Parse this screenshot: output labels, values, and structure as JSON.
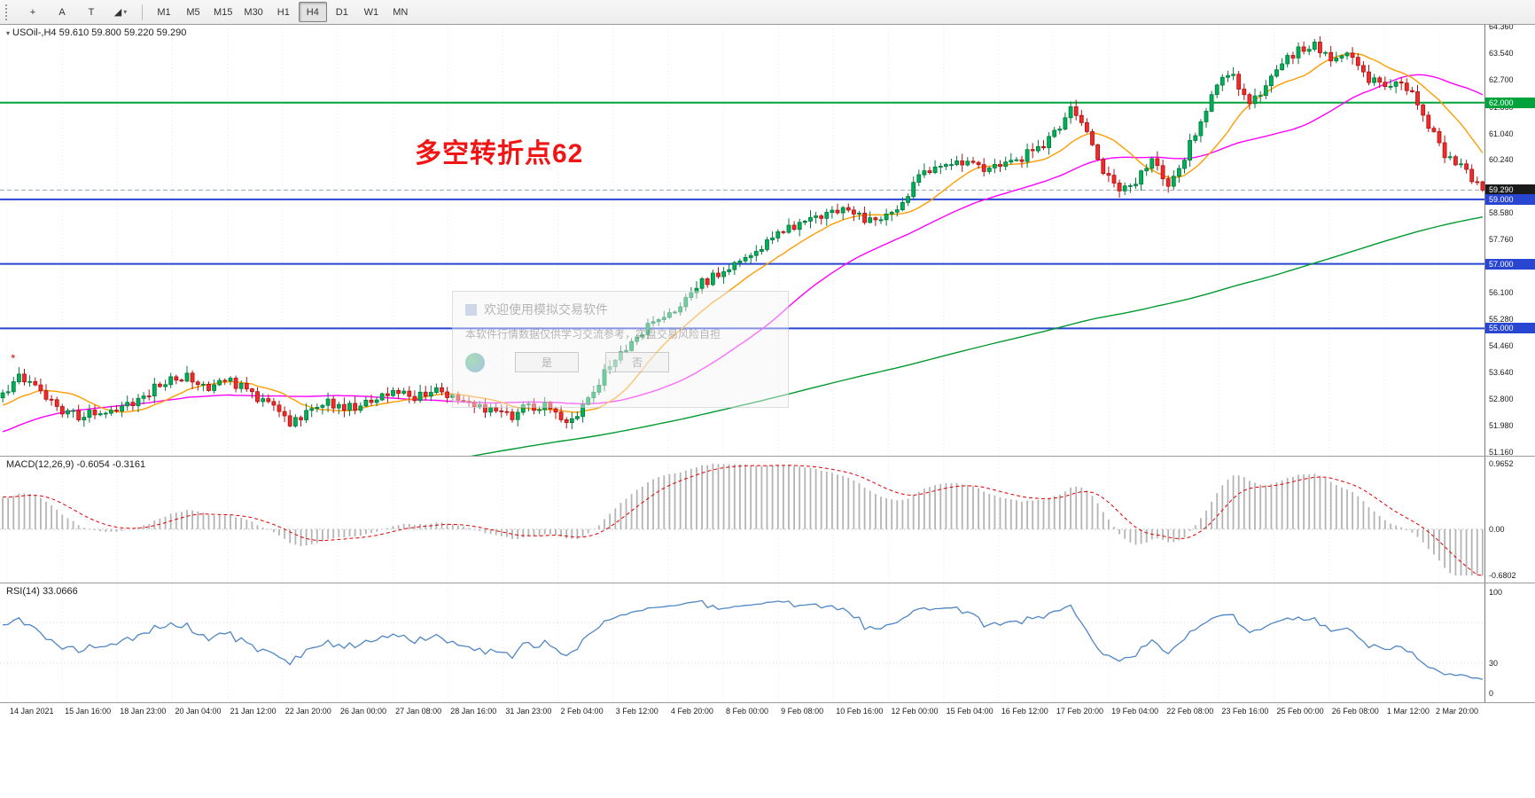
{
  "toolbar": {
    "tools": [
      {
        "name": "crosshair-tool",
        "glyph": "+"
      },
      {
        "name": "arrow-tool",
        "glyph": "A"
      },
      {
        "name": "text-tool",
        "glyph": "T"
      },
      {
        "name": "shapes-tool",
        "glyph": "◢",
        "has_dropdown": true
      }
    ],
    "timeframes": [
      "M1",
      "M5",
      "M15",
      "M30",
      "H1",
      "H4",
      "D1",
      "W1",
      "MN"
    ],
    "active_timeframe": "H4"
  },
  "main": {
    "symbol_label": "USOil-,H4  59.610 59.800 59.220 59.290",
    "annotation": "多空转折点62"
  },
  "watermark": {
    "title": "欢迎使用模拟交易软件",
    "body": "本软件行情数据仅供学习交流参考，实盘交易风险自担",
    "buttons": [
      "是",
      "否"
    ]
  },
  "chart_data": {
    "type": "candlestick",
    "symbol": "USOil-",
    "timeframe": "H4",
    "ohlc": {
      "open": 59.61,
      "high": 59.8,
      "low": 59.22,
      "close": 59.29
    },
    "price_range": [
      51.16,
      64.36
    ],
    "candles_count": 274,
    "trend_anchors": [
      [
        0,
        53.0
      ],
      [
        3,
        53.55
      ],
      [
        6,
        53.3
      ],
      [
        10,
        52.55
      ],
      [
        14,
        52.25
      ],
      [
        18,
        52.45
      ],
      [
        22,
        52.6
      ],
      [
        26,
        52.9
      ],
      [
        30,
        53.35
      ],
      [
        34,
        53.55
      ],
      [
        38,
        53.2
      ],
      [
        42,
        53.35
      ],
      [
        46,
        52.95
      ],
      [
        50,
        52.65
      ],
      [
        53,
        51.95
      ],
      [
        56,
        52.45
      ],
      [
        60,
        52.7
      ],
      [
        64,
        52.55
      ],
      [
        68,
        52.7
      ],
      [
        72,
        53.0
      ],
      [
        76,
        52.9
      ],
      [
        80,
        53.1
      ],
      [
        84,
        52.85
      ],
      [
        88,
        52.6
      ],
      [
        92,
        52.35
      ],
      [
        94,
        52.2
      ],
      [
        96,
        52.5
      ],
      [
        100,
        52.6
      ],
      [
        103,
        52.1
      ],
      [
        106,
        52.4
      ],
      [
        108,
        52.8
      ],
      [
        112,
        53.9
      ],
      [
        116,
        54.6
      ],
      [
        120,
        55.2
      ],
      [
        124,
        55.6
      ],
      [
        128,
        56.3
      ],
      [
        132,
        56.7
      ],
      [
        136,
        57.1
      ],
      [
        140,
        57.5
      ],
      [
        144,
        58.0
      ],
      [
        148,
        58.35
      ],
      [
        152,
        58.6
      ],
      [
        156,
        58.8
      ],
      [
        158,
        58.45
      ],
      [
        162,
        58.3
      ],
      [
        166,
        58.9
      ],
      [
        170,
        59.9
      ],
      [
        174,
        60.2
      ],
      [
        178,
        60.05
      ],
      [
        182,
        59.95
      ],
      [
        186,
        60.1
      ],
      [
        190,
        60.5
      ],
      [
        194,
        61.0
      ],
      [
        197,
        61.75
      ],
      [
        200,
        61.1
      ],
      [
        203,
        59.9
      ],
      [
        206,
        59.3
      ],
      [
        209,
        59.6
      ],
      [
        212,
        60.2
      ],
      [
        215,
        59.4
      ],
      [
        218,
        60.3
      ],
      [
        221,
        61.5
      ],
      [
        224,
        62.6
      ],
      [
        227,
        62.9
      ],
      [
        230,
        61.9
      ],
      [
        233,
        62.4
      ],
      [
        236,
        63.3
      ],
      [
        239,
        63.6
      ],
      [
        242,
        63.8
      ],
      [
        245,
        63.3
      ],
      [
        248,
        63.5
      ],
      [
        251,
        62.9
      ],
      [
        254,
        62.5
      ],
      [
        257,
        62.6
      ],
      [
        260,
        62.4
      ],
      [
        263,
        61.3
      ],
      [
        266,
        60.3
      ],
      [
        269,
        60.0
      ],
      [
        271,
        59.6
      ],
      [
        273,
        59.29
      ]
    ],
    "levels": [
      {
        "price": 62.0,
        "label": "62.000",
        "color": "#00a23c",
        "width": 2
      },
      {
        "price": 59.0,
        "label": "59.000",
        "color": "#2946d2",
        "width": 2
      },
      {
        "price": 57.0,
        "label": "57.000",
        "color": "#2946d2",
        "width": 2
      },
      {
        "price": 55.0,
        "label": "55.000",
        "color": "#2946d2",
        "width": 2
      }
    ],
    "price_ticks": [
      "64.360",
      "63.540",
      "62.700",
      "61.860",
      "61.040",
      "60.240",
      "58.580",
      "57.760",
      "56.100",
      "55.280",
      "54.460",
      "53.640",
      "52.800",
      "51.980",
      "51.160"
    ],
    "price_tags": [
      {
        "label": "62.000",
        "price": 62.0,
        "bg": "#00a23c"
      },
      {
        "label": "59.290",
        "price": 59.29,
        "bg": "#1a1a1a"
      },
      {
        "label": "59.000",
        "price": 59.0,
        "bg": "#2946d2"
      },
      {
        "label": "57.000",
        "price": 57.0,
        "bg": "#2946d2"
      },
      {
        "label": "55.000",
        "price": 55.0,
        "bg": "#2946d2"
      }
    ],
    "moving_averages": [
      {
        "period": 13,
        "color": "#ff9c00"
      },
      {
        "period": 40,
        "color": "#ff00ff"
      },
      {
        "period": 200,
        "color": "#009a2e"
      }
    ],
    "marker": {
      "index": 2,
      "price": 53.95,
      "glyph": "*",
      "color": "#e00000"
    },
    "macd": {
      "label": "MACD(12,26,9) -0.6054 -0.3161",
      "fast": 12,
      "slow": 26,
      "signal": 9,
      "value": -0.6054,
      "signal_value": -0.3161,
      "scale_max": 0.9652,
      "scale_min": -0.6802,
      "axis_labels": [
        "0.9652",
        "0.00",
        "-0.6802"
      ]
    },
    "rsi": {
      "label": "RSI(14) 33.0666",
      "period": 14,
      "value": 33.0666,
      "levels": [
        70,
        30
      ],
      "axis_labels": [
        100,
        30,
        0
      ]
    },
    "time_labels": [
      "14 Jan 2021",
      "15 Jan 16:00",
      "18 Jan 23:00",
      "20 Jan 04:00",
      "21 Jan 12:00",
      "22 Jan 20:00",
      "26 Jan 00:00",
      "27 Jan 08:00",
      "28 Jan 16:00",
      "31 Jan 23:00",
      "2 Feb 04:00",
      "3 Feb 12:00",
      "4 Feb 20:00",
      "8 Feb 00:00",
      "9 Feb 08:00",
      "10 Feb 16:00",
      "12 Feb 00:00",
      "15 Feb 04:00",
      "16 Feb 12:00",
      "17 Feb 20:00",
      "19 Feb 04:00",
      "22 Feb 08:00",
      "23 Feb 16:00",
      "25 Feb 00:00",
      "26 Feb 08:00",
      "1 Mar 12:00",
      "2 Mar 20:00"
    ]
  },
  "colors": {
    "up": "#00b058",
    "up_border": "#00793a",
    "down": "#ef2b2b",
    "down_border": "#b01010",
    "grid": "#ebebeb",
    "macd_hist": "#b4b4b4",
    "macd_signal": "#e00000",
    "rsi_line": "#4f86c6",
    "current_price_line": "#9aa4b8"
  }
}
